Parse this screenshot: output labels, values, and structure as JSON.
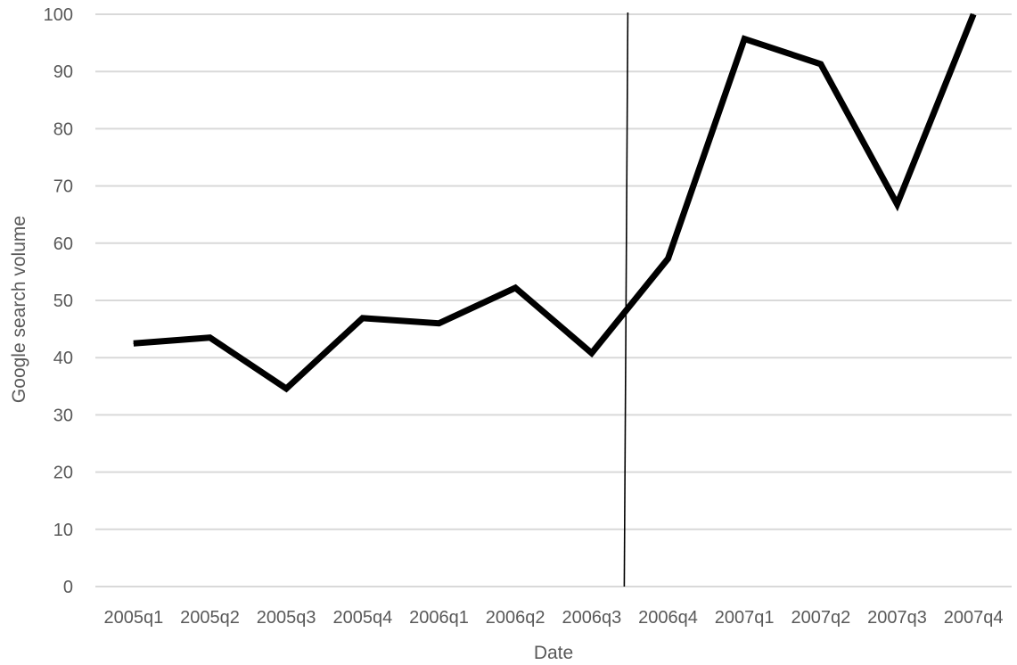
{
  "chart_data": {
    "type": "line",
    "title": "",
    "xlabel": "Date",
    "ylabel": "Google search volume",
    "categories": [
      "2005q1",
      "2005q2",
      "2005q3",
      "2005q4",
      "2006q1",
      "2006q2",
      "2006q3",
      "2006q4",
      "2007q1",
      "2007q2",
      "2007q3",
      "2007q4"
    ],
    "series": [
      {
        "values": [
          42.5,
          43.5,
          34.6,
          46.9,
          46.0,
          52.2,
          40.8,
          57.3,
          95.7,
          91.3,
          66.8,
          100
        ]
      }
    ],
    "ylim": [
      0,
      100
    ],
    "yticks": [
      0,
      10,
      20,
      30,
      40,
      50,
      60,
      70,
      80,
      90,
      100
    ],
    "vertical_marker": {
      "from_category": "2006q3",
      "to_category": "2006q4",
      "position": 0.45
    },
    "grid": "horizontal",
    "legend": "none",
    "colors": {
      "series": "#000000",
      "marker": "#000000",
      "grid": "#d9d9d9",
      "text": "#595959"
    }
  }
}
